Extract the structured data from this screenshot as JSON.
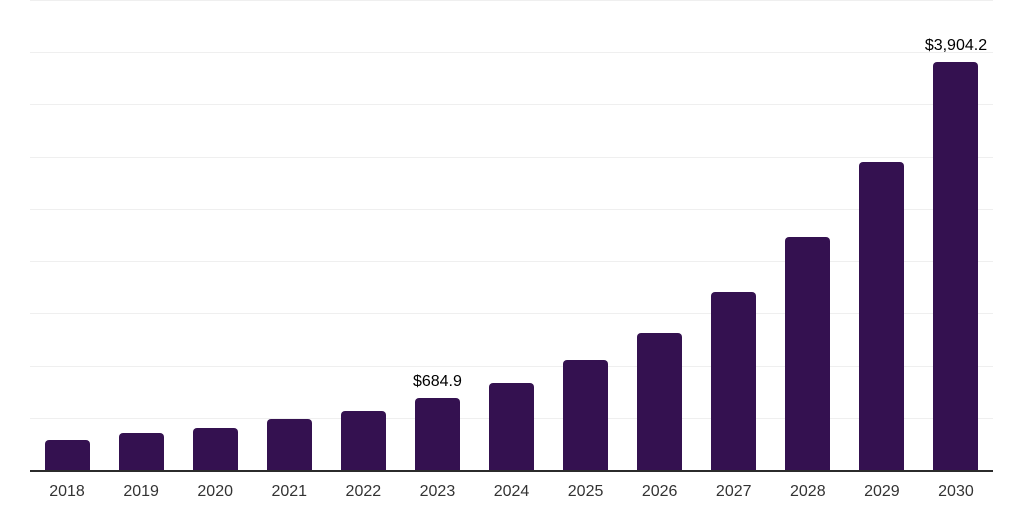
{
  "chart": {
    "background_color": "#ffffff",
    "bar_color": "#341150",
    "gridline_color": "#efefef",
    "axis_line_color": "#2b2b2b",
    "tick_label_color": "#333333",
    "data_label_color": "#000000"
  },
  "chart_data": {
    "type": "bar",
    "title": "",
    "xlabel": "",
    "ylabel": "",
    "categories": [
      "2018",
      "2019",
      "2020",
      "2021",
      "2022",
      "2023",
      "2024",
      "2025",
      "2026",
      "2027",
      "2028",
      "2029",
      "2030"
    ],
    "values": [
      290,
      350,
      405,
      485,
      565,
      684.9,
      835,
      1055,
      1315,
      1705,
      2235,
      2950,
      3904.2
    ],
    "data_labels": [
      "",
      "",
      "",
      "",
      "",
      "$684.9",
      "",
      "",
      "",
      "",
      "",
      "",
      "$3,904.2"
    ],
    "ylim": [
      0,
      4500
    ],
    "grid_step": 500,
    "grid": true,
    "legend": false
  }
}
